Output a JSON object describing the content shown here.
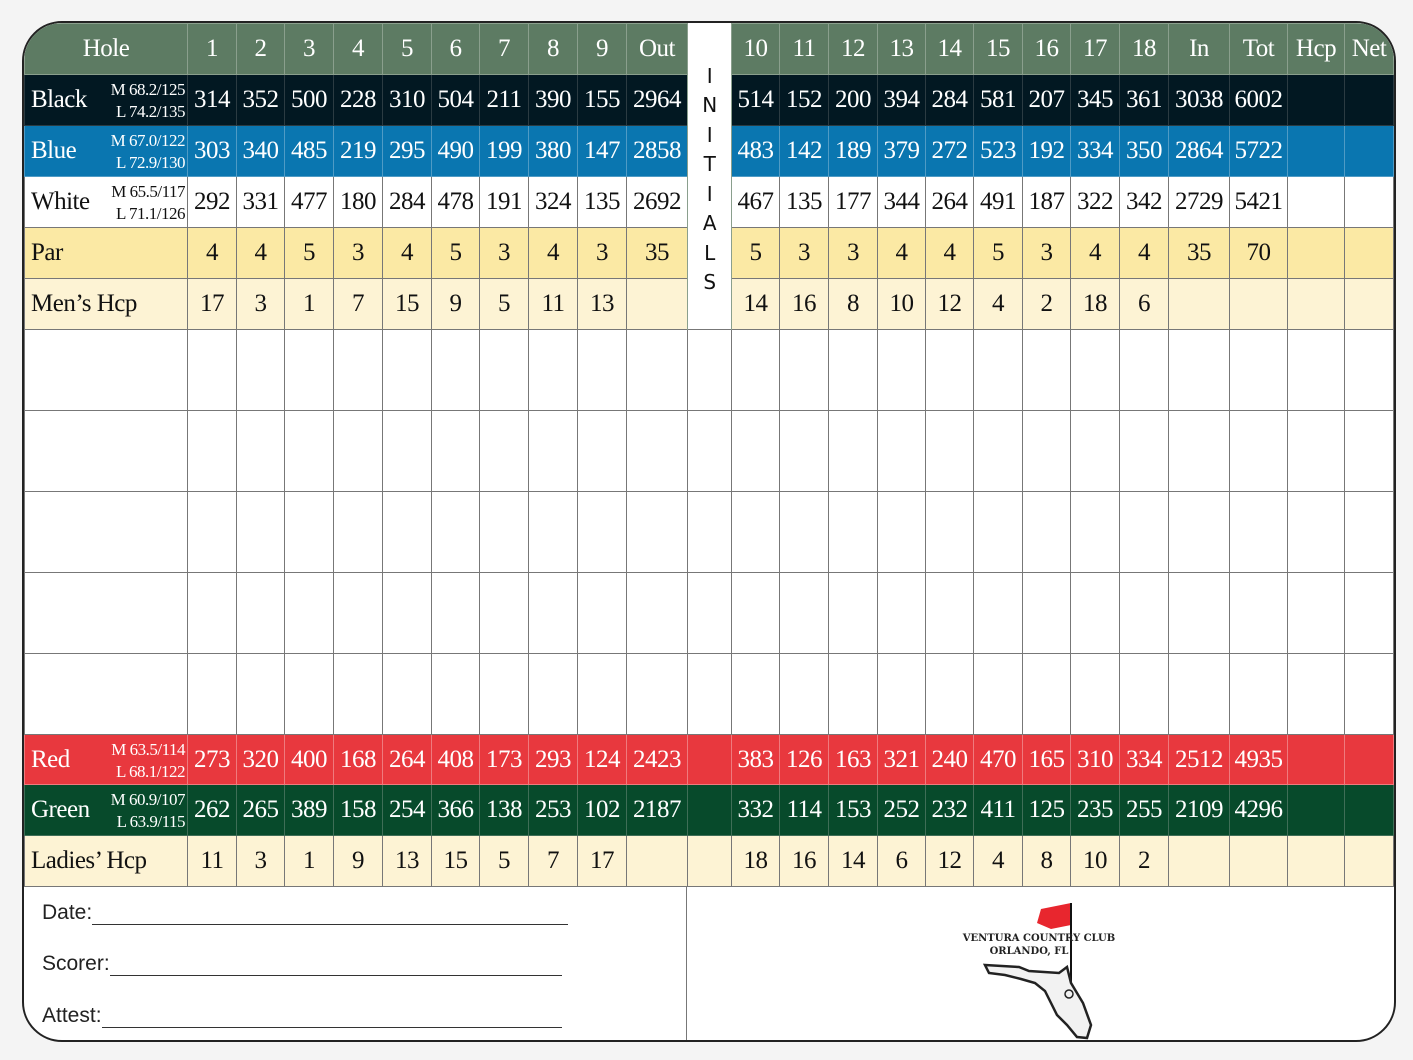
{
  "header": {
    "label": "Hole",
    "front": [
      "1",
      "2",
      "3",
      "4",
      "5",
      "6",
      "7",
      "8",
      "9"
    ],
    "out": "Out",
    "back": [
      "10",
      "11",
      "12",
      "13",
      "14",
      "15",
      "16",
      "17",
      "18"
    ],
    "in": "In",
    "tot": "Tot",
    "hcp": "Hcp",
    "net": "Net"
  },
  "initials": [
    "I",
    "N",
    "I",
    "T",
    "I",
    "A",
    "L",
    "S"
  ],
  "tees": [
    {
      "key": "black",
      "name": "Black",
      "m": "M 68.2/125",
      "l": "L 74.2/135",
      "front": [
        "314",
        "352",
        "500",
        "228",
        "310",
        "504",
        "211",
        "390",
        "155"
      ],
      "out": "2964",
      "back": [
        "514",
        "152",
        "200",
        "394",
        "284",
        "581",
        "207",
        "345",
        "361"
      ],
      "in": "3038",
      "tot": "6002"
    },
    {
      "key": "blue",
      "name": "Blue",
      "m": "M 67.0/122",
      "l": "L 72.9/130",
      "front": [
        "303",
        "340",
        "485",
        "219",
        "295",
        "490",
        "199",
        "380",
        "147"
      ],
      "out": "2858",
      "back": [
        "483",
        "142",
        "189",
        "379",
        "272",
        "523",
        "192",
        "334",
        "350"
      ],
      "in": "2864",
      "tot": "5722"
    },
    {
      "key": "white",
      "name": "White",
      "m": "M 65.5/117",
      "l": "L 71.1/126",
      "front": [
        "292",
        "331",
        "477",
        "180",
        "284",
        "478",
        "191",
        "324",
        "135"
      ],
      "out": "2692",
      "back": [
        "467",
        "135",
        "177",
        "344",
        "264",
        "491",
        "187",
        "322",
        "342"
      ],
      "in": "2729",
      "tot": "5421"
    }
  ],
  "par": {
    "name": "Par",
    "front": [
      "4",
      "4",
      "5",
      "3",
      "4",
      "5",
      "3",
      "4",
      "3"
    ],
    "out": "35",
    "back": [
      "5",
      "3",
      "3",
      "4",
      "4",
      "5",
      "3",
      "4",
      "4"
    ],
    "in": "35",
    "tot": "70"
  },
  "mens_hcp": {
    "name": "Men’s Hcp",
    "front": [
      "17",
      "3",
      "1",
      "7",
      "15",
      "9",
      "5",
      "11",
      "13"
    ],
    "back": [
      "14",
      "16",
      "8",
      "10",
      "12",
      "4",
      "2",
      "18",
      "6"
    ]
  },
  "ladies_tees": [
    {
      "key": "red",
      "name": "Red",
      "m": "M 63.5/114",
      "l": "L 68.1/122",
      "front": [
        "273",
        "320",
        "400",
        "168",
        "264",
        "408",
        "173",
        "293",
        "124"
      ],
      "out": "2423",
      "back": [
        "383",
        "126",
        "163",
        "321",
        "240",
        "470",
        "165",
        "310",
        "334"
      ],
      "in": "2512",
      "tot": "4935"
    },
    {
      "key": "green",
      "name": "Green",
      "m": "M 60.9/107",
      "l": "L 63.9/115",
      "front": [
        "262",
        "265",
        "389",
        "158",
        "254",
        "366",
        "138",
        "253",
        "102"
      ],
      "out": "2187",
      "back": [
        "332",
        "114",
        "153",
        "252",
        "232",
        "411",
        "125",
        "235",
        "255"
      ],
      "in": "2109",
      "tot": "4296"
    }
  ],
  "ladies_hcp": {
    "name": "Ladies’ Hcp",
    "front": [
      "11",
      "3",
      "1",
      "9",
      "13",
      "15",
      "5",
      "7",
      "17"
    ],
    "back": [
      "18",
      "16",
      "14",
      "6",
      "12",
      "4",
      "8",
      "10",
      "2"
    ]
  },
  "footer": {
    "date": "Date:",
    "scorer": "Scorer:",
    "attest": "Attest:"
  },
  "logo": {
    "line1": "VENTURA COUNTRY CLUB",
    "line2": "ORLANDO, FL",
    "flag_color": "#e8262e"
  },
  "colors": {
    "header": "#5d7b63",
    "black": "#021822",
    "blue": "#0a76b0",
    "par": "#fbe9a4",
    "hcp": "#fdf3d4",
    "red": "#e8383e",
    "green": "#074a2b"
  }
}
